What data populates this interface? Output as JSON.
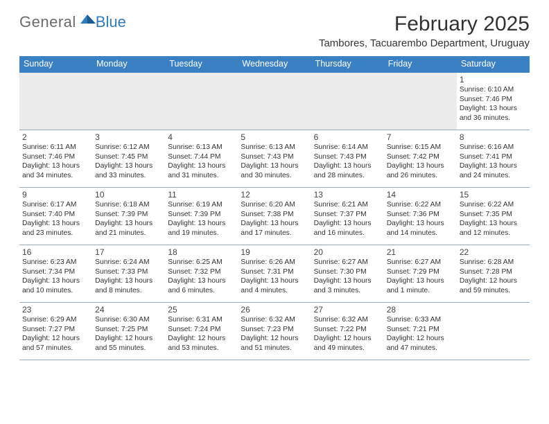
{
  "logo": {
    "general": "General",
    "blue": "Blue"
  },
  "title": "February 2025",
  "location": "Tambores, Tacuarembo Department, Uruguay",
  "colors": {
    "header_bar": "#3a81c4",
    "header_text": "#ffffff",
    "grid_line": "#95a9bd",
    "blank_bg": "#ececec",
    "logo_gray": "#6b6b6b",
    "logo_blue": "#2f7bbf",
    "text": "#333333"
  },
  "weekdays": [
    "Sunday",
    "Monday",
    "Tuesday",
    "Wednesday",
    "Thursday",
    "Friday",
    "Saturday"
  ],
  "weeks": [
    [
      null,
      null,
      null,
      null,
      null,
      null,
      {
        "n": "1",
        "sunrise": "6:10 AM",
        "sunset": "7:46 PM",
        "daylight": "13 hours and 36 minutes."
      }
    ],
    [
      {
        "n": "2",
        "sunrise": "6:11 AM",
        "sunset": "7:46 PM",
        "daylight": "13 hours and 34 minutes."
      },
      {
        "n": "3",
        "sunrise": "6:12 AM",
        "sunset": "7:45 PM",
        "daylight": "13 hours and 33 minutes."
      },
      {
        "n": "4",
        "sunrise": "6:13 AM",
        "sunset": "7:44 PM",
        "daylight": "13 hours and 31 minutes."
      },
      {
        "n": "5",
        "sunrise": "6:13 AM",
        "sunset": "7:43 PM",
        "daylight": "13 hours and 30 minutes."
      },
      {
        "n": "6",
        "sunrise": "6:14 AM",
        "sunset": "7:43 PM",
        "daylight": "13 hours and 28 minutes."
      },
      {
        "n": "7",
        "sunrise": "6:15 AM",
        "sunset": "7:42 PM",
        "daylight": "13 hours and 26 minutes."
      },
      {
        "n": "8",
        "sunrise": "6:16 AM",
        "sunset": "7:41 PM",
        "daylight": "13 hours and 24 minutes."
      }
    ],
    [
      {
        "n": "9",
        "sunrise": "6:17 AM",
        "sunset": "7:40 PM",
        "daylight": "13 hours and 23 minutes."
      },
      {
        "n": "10",
        "sunrise": "6:18 AM",
        "sunset": "7:39 PM",
        "daylight": "13 hours and 21 minutes."
      },
      {
        "n": "11",
        "sunrise": "6:19 AM",
        "sunset": "7:39 PM",
        "daylight": "13 hours and 19 minutes."
      },
      {
        "n": "12",
        "sunrise": "6:20 AM",
        "sunset": "7:38 PM",
        "daylight": "13 hours and 17 minutes."
      },
      {
        "n": "13",
        "sunrise": "6:21 AM",
        "sunset": "7:37 PM",
        "daylight": "13 hours and 16 minutes."
      },
      {
        "n": "14",
        "sunrise": "6:22 AM",
        "sunset": "7:36 PM",
        "daylight": "13 hours and 14 minutes."
      },
      {
        "n": "15",
        "sunrise": "6:22 AM",
        "sunset": "7:35 PM",
        "daylight": "13 hours and 12 minutes."
      }
    ],
    [
      {
        "n": "16",
        "sunrise": "6:23 AM",
        "sunset": "7:34 PM",
        "daylight": "13 hours and 10 minutes."
      },
      {
        "n": "17",
        "sunrise": "6:24 AM",
        "sunset": "7:33 PM",
        "daylight": "13 hours and 8 minutes."
      },
      {
        "n": "18",
        "sunrise": "6:25 AM",
        "sunset": "7:32 PM",
        "daylight": "13 hours and 6 minutes."
      },
      {
        "n": "19",
        "sunrise": "6:26 AM",
        "sunset": "7:31 PM",
        "daylight": "13 hours and 4 minutes."
      },
      {
        "n": "20",
        "sunrise": "6:27 AM",
        "sunset": "7:30 PM",
        "daylight": "13 hours and 3 minutes."
      },
      {
        "n": "21",
        "sunrise": "6:27 AM",
        "sunset": "7:29 PM",
        "daylight": "13 hours and 1 minute."
      },
      {
        "n": "22",
        "sunrise": "6:28 AM",
        "sunset": "7:28 PM",
        "daylight": "12 hours and 59 minutes."
      }
    ],
    [
      {
        "n": "23",
        "sunrise": "6:29 AM",
        "sunset": "7:27 PM",
        "daylight": "12 hours and 57 minutes."
      },
      {
        "n": "24",
        "sunrise": "6:30 AM",
        "sunset": "7:25 PM",
        "daylight": "12 hours and 55 minutes."
      },
      {
        "n": "25",
        "sunrise": "6:31 AM",
        "sunset": "7:24 PM",
        "daylight": "12 hours and 53 minutes."
      },
      {
        "n": "26",
        "sunrise": "6:32 AM",
        "sunset": "7:23 PM",
        "daylight": "12 hours and 51 minutes."
      },
      {
        "n": "27",
        "sunrise": "6:32 AM",
        "sunset": "7:22 PM",
        "daylight": "12 hours and 49 minutes."
      },
      {
        "n": "28",
        "sunrise": "6:33 AM",
        "sunset": "7:21 PM",
        "daylight": "12 hours and 47 minutes."
      },
      null
    ]
  ],
  "labels": {
    "sunrise": "Sunrise:",
    "sunset": "Sunset:",
    "daylight": "Daylight:"
  }
}
